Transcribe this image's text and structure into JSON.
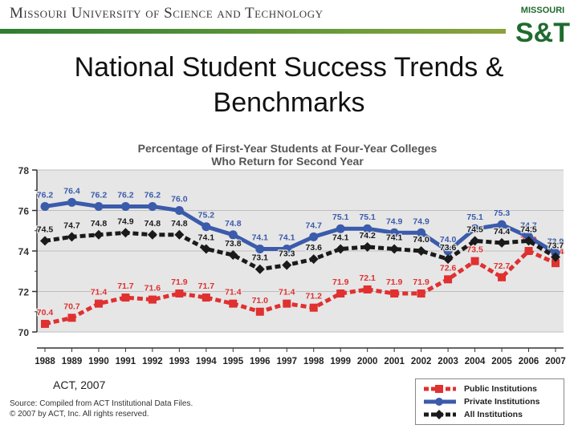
{
  "header": {
    "institution": "Missouri University of Science and Technology"
  },
  "logo": {
    "top_text": "MISSOURI",
    "mark": "S&T"
  },
  "slide": {
    "title": "National Student Success Trends & Benchmarks"
  },
  "chart_data": {
    "type": "line",
    "title": "Percentage of First-Year Students at Four-Year Colleges",
    "subtitle": "Who Return for Second Year",
    "x": [
      "1988",
      "1989",
      "1990",
      "1991",
      "1992",
      "1993",
      "1994",
      "1995",
      "1996",
      "1997",
      "1998",
      "1999",
      "2000",
      "2001",
      "2002",
      "2003",
      "2004",
      "2005",
      "2006",
      "2007"
    ],
    "ylim": [
      70,
      78
    ],
    "yticks": [
      70,
      72,
      74,
      76,
      78
    ],
    "series": [
      {
        "name": "Public Institutions",
        "color": "#e03030",
        "values": [
          70.4,
          70.7,
          71.4,
          71.7,
          71.6,
          71.9,
          71.7,
          71.4,
          71.0,
          71.4,
          71.2,
          71.9,
          72.1,
          71.9,
          71.9,
          72.6,
          73.5,
          72.7,
          74.0,
          73.4
        ]
      },
      {
        "name": "Private Institutions",
        "color": "#3b5bab",
        "values": [
          76.2,
          76.4,
          76.2,
          76.2,
          76.2,
          76.0,
          75.2,
          74.8,
          74.1,
          74.1,
          74.7,
          75.1,
          75.1,
          74.9,
          74.9,
          74.0,
          75.1,
          75.3,
          74.7,
          73.9
        ]
      },
      {
        "name": "All Institutions",
        "color": "#1a1a1a",
        "values": [
          74.5,
          74.7,
          74.8,
          74.9,
          74.8,
          74.8,
          74.1,
          73.8,
          73.1,
          73.3,
          73.6,
          74.1,
          74.2,
          74.1,
          74.0,
          73.6,
          74.5,
          74.4,
          74.5,
          73.7
        ]
      }
    ],
    "grid": true,
    "legend": "bottom-right"
  },
  "act_label": "ACT, 2007",
  "source": {
    "line1": "Source: Compiled from ACT Institutional Data Files.",
    "line2": "© 2007 by ACT, Inc. All rights reserved."
  },
  "colors": {
    "header_green": "#2e7d32",
    "logo_green": "#1f6b2f",
    "panel_bg": "#e6e6e6"
  }
}
